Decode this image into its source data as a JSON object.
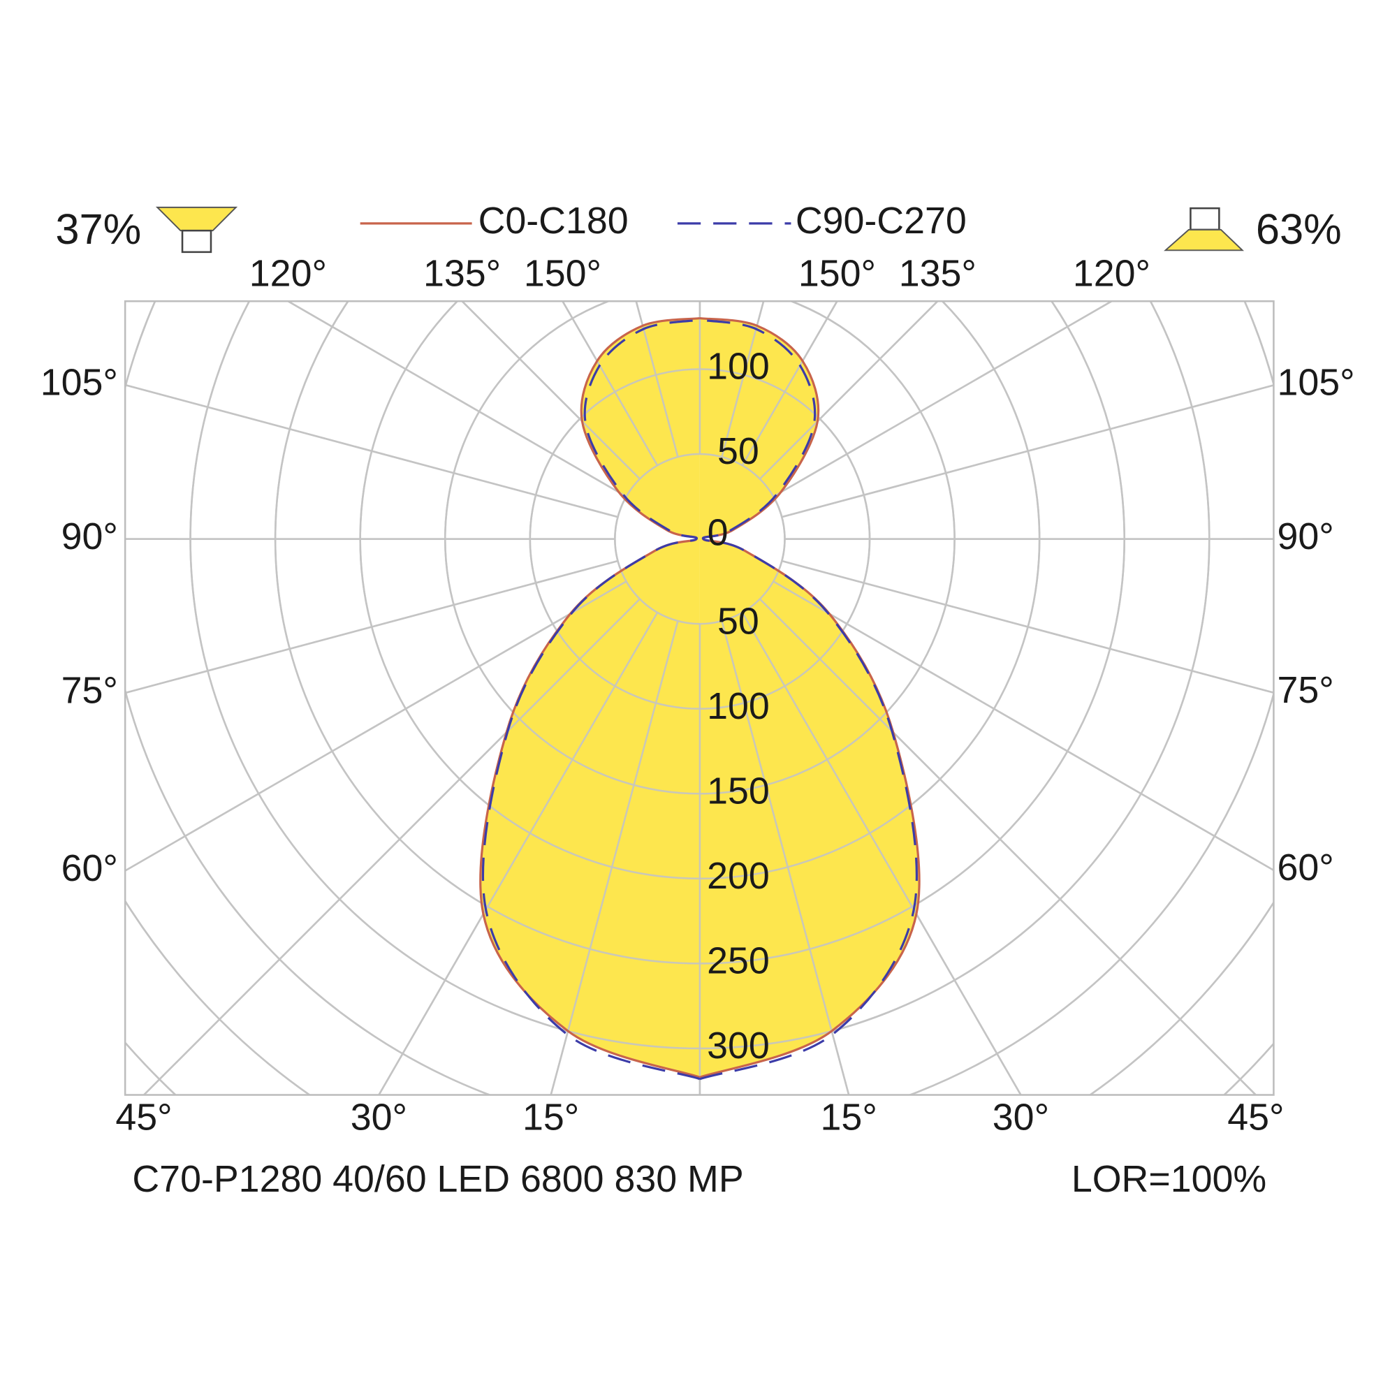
{
  "chart_data": {
    "type": "polar",
    "header": {
      "up_share": "37%",
      "down_share": "63%"
    },
    "footer": {
      "model": "C70-P1280 40/60 LED 6800 830 MP",
      "lor": "LOR=100%"
    },
    "angles": [
      0,
      15,
      30,
      45,
      60,
      75,
      90,
      105,
      120,
      135,
      150,
      165,
      180
    ],
    "series": [
      {
        "name": "C0-C180",
        "color": "#c8644b",
        "dash": false,
        "values": [
          317,
          300,
          255,
          161,
          88,
          28,
          2,
          20,
          55,
          98,
          121,
          130,
          130
        ]
      },
      {
        "name": "C90-C270",
        "color": "#3c3ca8",
        "dash": true,
        "values": [
          318,
          302,
          252,
          160,
          87,
          28,
          2,
          18,
          52,
          95,
          118,
          128,
          129
        ]
      }
    ],
    "fill_color": "#fde64e",
    "rlim": [
      0,
      300
    ],
    "rticks": [
      50,
      100,
      150,
      200,
      250,
      300
    ],
    "rticks_up": [
      0,
      50,
      100
    ],
    "angle_ticks": [
      {
        "value": 15,
        "label": "15°"
      },
      {
        "value": 30,
        "label": "30°"
      },
      {
        "value": 45,
        "label": "45°"
      },
      {
        "value": 60,
        "label": "60°"
      },
      {
        "value": 75,
        "label": "75°"
      },
      {
        "value": 90,
        "label": "90°"
      },
      {
        "value": 105,
        "label": "105°"
      },
      {
        "value": 120,
        "label": "120°"
      },
      {
        "value": 135,
        "label": "135°"
      },
      {
        "value": 150,
        "label": "150°"
      }
    ],
    "grid": true
  }
}
